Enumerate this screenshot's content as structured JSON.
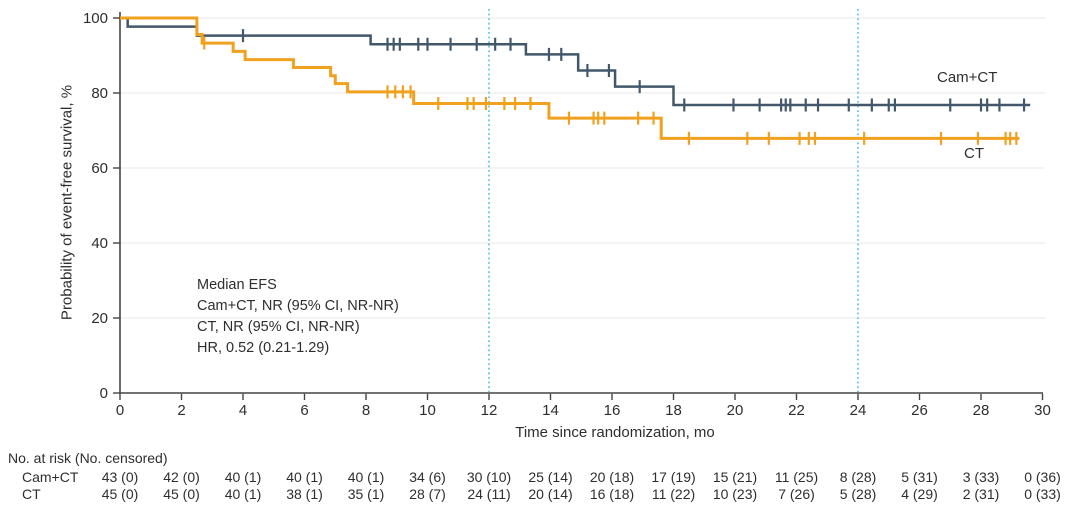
{
  "chart_data": {
    "type": "line",
    "subtype": "kaplan-meier-step-survival",
    "title": "",
    "xlabel": "Time since randomization, mo",
    "ylabel": "Probability of event-free survival, %",
    "xlim": [
      0,
      30
    ],
    "ylim": [
      0,
      100
    ],
    "xticks": [
      0,
      2,
      4,
      6,
      8,
      10,
      12,
      14,
      16,
      18,
      20,
      22,
      24,
      26,
      28,
      30
    ],
    "yticks": [
      0,
      20,
      40,
      60,
      80,
      100
    ],
    "grid": "horizontal-light",
    "legend_position": "curve-end-labels",
    "reference_lines_x": [
      12,
      24
    ],
    "reference_line_style": "dotted-vertical",
    "annotation": {
      "lines": [
        "Median EFS",
        "Cam+CT, NR (95% CI, NR-NR)",
        "CT, NR (95% CI, NR-NR)",
        "HR, 0.52 (0.21-1.29)"
      ]
    },
    "series": [
      {
        "name": "Cam+CT",
        "color": "#42586a",
        "end_time": 29.6,
        "steps_time_pct": [
          [
            0,
            100
          ],
          [
            0.25,
            97.7
          ],
          [
            2.5,
            95.3
          ],
          [
            8.15,
            93.0
          ],
          [
            13.2,
            90.3
          ],
          [
            14.9,
            86.0
          ],
          [
            16.1,
            81.7
          ],
          [
            18.0,
            76.8
          ]
        ],
        "censor_times": [
          4.0,
          8.7,
          8.9,
          9.1,
          9.7,
          10.0,
          10.75,
          11.6,
          12.2,
          12.7,
          13.95,
          14.35,
          15.2,
          15.9,
          16.9,
          18.35,
          19.95,
          20.8,
          21.5,
          21.65,
          21.8,
          22.3,
          22.7,
          23.7,
          24.45,
          25.0,
          25.2,
          27.0,
          28.0,
          28.2,
          28.6,
          29.4
        ]
      },
      {
        "name": "CT",
        "color": "#f0a11d",
        "end_time": 29.25,
        "steps_time_pct": [
          [
            0,
            100
          ],
          [
            2.5,
            95.6
          ],
          [
            2.67,
            93.3
          ],
          [
            3.68,
            91.1
          ],
          [
            4.07,
            88.9
          ],
          [
            5.64,
            86.8
          ],
          [
            6.85,
            84.6
          ],
          [
            7.0,
            82.5
          ],
          [
            7.4,
            80.3
          ],
          [
            9.55,
            77.2
          ],
          [
            13.95,
            73.3
          ],
          [
            17.6,
            67.9
          ]
        ],
        "censor_times": [
          2.74,
          8.7,
          8.95,
          9.2,
          9.45,
          10.35,
          11.3,
          11.5,
          11.9,
          12.5,
          12.85,
          13.35,
          14.6,
          15.4,
          15.55,
          15.75,
          16.85,
          17.35,
          18.5,
          20.4,
          21.1,
          22.1,
          22.4,
          22.6,
          24.2,
          26.7,
          27.9,
          28.8,
          28.95,
          29.15
        ]
      }
    ],
    "risk_table": {
      "header": "No. at risk (No. censored)",
      "times": [
        0,
        2,
        4,
        6,
        8,
        10,
        12,
        14,
        16,
        18,
        20,
        22,
        24,
        26,
        28,
        30
      ],
      "rows": [
        {
          "label": "Cam+CT",
          "values": [
            "43 (0)",
            "42 (0)",
            "40 (1)",
            "40 (1)",
            "40 (1)",
            "34 (6)",
            "30 (10)",
            "25 (14)",
            "20 (18)",
            "17 (19)",
            "15 (21)",
            "11 (25)",
            "8 (28)",
            "5 (31)",
            "3 (33)",
            "0 (36)"
          ]
        },
        {
          "label": "CT",
          "values": [
            "45 (0)",
            "45 (0)",
            "40 (1)",
            "38 (1)",
            "35 (1)",
            "28 (7)",
            "24 (11)",
            "20 (14)",
            "16 (18)",
            "11 (22)",
            "10 (23)",
            "7 (26)",
            "5 (28)",
            "4 (29)",
            "2 (31)",
            "0 (33)"
          ]
        }
      ]
    },
    "colors": {
      "cam_ct_curve": "#42586a",
      "ct_curve": "#f0a11d",
      "reference_line": "#5ec4e9",
      "grid": "#e9e9e9",
      "axis": "#454545",
      "text": "#2e2e2e"
    }
  }
}
